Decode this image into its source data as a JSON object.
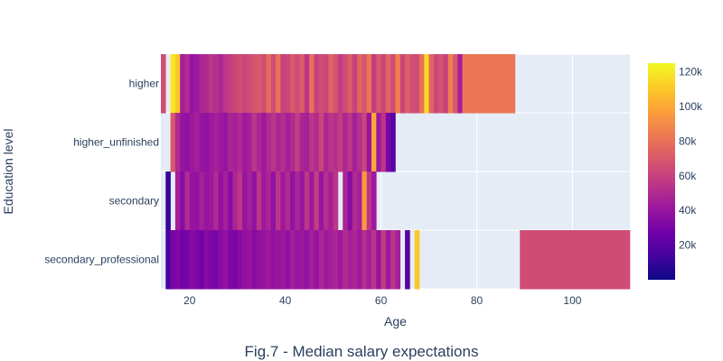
{
  "caption": "Fig.7 - Median salary expectations",
  "chart_data": {
    "type": "heatmap",
    "title": "",
    "xlabel": "Age",
    "ylabel": "Education level",
    "xlim": [
      14,
      112
    ],
    "x_ticks": [
      20,
      40,
      60,
      80,
      100
    ],
    "x_tick_labels": [
      "20",
      "40",
      "60",
      "80",
      "100"
    ],
    "categories": [
      "higher",
      "higher_unfinished",
      "secondary",
      "secondary_professional"
    ],
    "colorscale": [
      "#0d0887",
      "#46039f",
      "#7201a8",
      "#9c179e",
      "#bd3786",
      "#d8576b",
      "#ed7953",
      "#fb9f3a",
      "#fdca26",
      "#f0f921"
    ],
    "zlim": [
      0,
      125000
    ],
    "colorbar_ticks": [
      20000,
      40000,
      60000,
      80000,
      100000,
      120000
    ],
    "colorbar_tick_labels": [
      "20k",
      "40k",
      "60k",
      "80k",
      "100k",
      "120k"
    ],
    "plot_background": "#e5ecf6",
    "grid": true,
    "series": [
      {
        "name": "higher",
        "x": [
          14,
          15,
          16,
          17,
          18,
          19,
          20,
          21,
          22,
          23,
          24,
          25,
          26,
          27,
          28,
          29,
          30,
          31,
          32,
          33,
          34,
          35,
          36,
          37,
          38,
          39,
          40,
          41,
          42,
          43,
          44,
          45,
          46,
          47,
          48,
          49,
          50,
          51,
          52,
          53,
          54,
          55,
          56,
          57,
          58,
          59,
          60,
          61,
          62,
          63,
          64,
          65,
          66,
          67,
          68,
          69,
          70,
          71,
          72,
          73,
          74,
          75,
          76,
          77,
          88
        ],
        "values": [
          65000,
          null,
          120000,
          110000,
          45000,
          50000,
          40000,
          42000,
          48000,
          50000,
          55000,
          52000,
          48000,
          55000,
          58000,
          62000,
          65000,
          62000,
          65000,
          68000,
          70000,
          65000,
          78000,
          65000,
          80000,
          60000,
          62000,
          70000,
          65000,
          72000,
          55000,
          80000,
          60000,
          65000,
          62000,
          75000,
          68000,
          58000,
          65000,
          72000,
          60000,
          75000,
          68000,
          82000,
          58000,
          70000,
          62000,
          75000,
          65000,
          85000,
          62000,
          72000,
          66000,
          65000,
          80000,
          115000,
          75000,
          62000,
          68000,
          60000,
          85000,
          70000,
          45000,
          82000,
          null
        ]
      },
      {
        "name": "higher_unfinished",
        "x": [
          16,
          17,
          18,
          19,
          20,
          21,
          22,
          23,
          24,
          25,
          26,
          27,
          28,
          29,
          30,
          31,
          32,
          33,
          34,
          35,
          36,
          37,
          38,
          39,
          40,
          41,
          42,
          43,
          44,
          45,
          46,
          47,
          48,
          49,
          50,
          51,
          52,
          53,
          54,
          55,
          56,
          57,
          58,
          59,
          60,
          61,
          62,
          63
        ],
        "values": [
          70000,
          50000,
          40000,
          38000,
          42000,
          45000,
          40000,
          38000,
          42000,
          45000,
          42000,
          40000,
          48000,
          45000,
          50000,
          42000,
          45000,
          55000,
          48000,
          42000,
          50000,
          55000,
          48000,
          52000,
          45000,
          50000,
          58000,
          48000,
          45000,
          55000,
          50000,
          62000,
          48000,
          55000,
          52000,
          58000,
          48000,
          55000,
          45000,
          52000,
          62000,
          40000,
          100000,
          42000,
          55000,
          30000,
          20000,
          null
        ]
      },
      {
        "name": "secondary",
        "x": [
          15,
          16,
          17,
          18,
          19,
          20,
          21,
          22,
          23,
          24,
          25,
          26,
          27,
          28,
          29,
          30,
          31,
          32,
          33,
          34,
          35,
          36,
          37,
          38,
          39,
          40,
          41,
          42,
          43,
          44,
          45,
          46,
          47,
          48,
          49,
          50,
          51,
          52,
          53,
          54,
          55,
          56,
          57,
          58,
          59
        ],
        "values": [
          10000,
          null,
          45000,
          35000,
          50000,
          40000,
          38000,
          45000,
          40000,
          42000,
          50000,
          38000,
          45000,
          35000,
          48000,
          55000,
          40000,
          45000,
          38000,
          55000,
          42000,
          48000,
          38000,
          55000,
          42000,
          50000,
          38000,
          48000,
          40000,
          55000,
          42000,
          58000,
          40000,
          52000,
          45000,
          55000,
          null,
          48000,
          35000,
          50000,
          45000,
          95000,
          55000,
          42000,
          null
        ]
      },
      {
        "name": "secondary_professional",
        "x": [
          15,
          16,
          17,
          18,
          19,
          20,
          21,
          22,
          23,
          24,
          25,
          26,
          27,
          28,
          29,
          30,
          31,
          32,
          33,
          34,
          35,
          36,
          37,
          38,
          39,
          40,
          41,
          42,
          43,
          44,
          45,
          46,
          47,
          48,
          49,
          50,
          51,
          52,
          53,
          54,
          55,
          56,
          57,
          58,
          59,
          60,
          61,
          62,
          63,
          64,
          65,
          66,
          67,
          68,
          89,
          112
        ],
        "values": [
          15000,
          30000,
          32000,
          28000,
          30000,
          35000,
          32000,
          28000,
          35000,
          32000,
          30000,
          35000,
          38000,
          32000,
          30000,
          35000,
          38000,
          40000,
          35000,
          38000,
          40000,
          42000,
          38000,
          40000,
          42000,
          38000,
          45000,
          40000,
          42000,
          38000,
          45000,
          40000,
          48000,
          42000,
          45000,
          48000,
          42000,
          50000,
          45000,
          48000,
          42000,
          52000,
          45000,
          55000,
          40000,
          58000,
          42000,
          55000,
          45000,
          null,
          20000,
          null,
          110000,
          null,
          65000,
          null
        ]
      }
    ]
  }
}
